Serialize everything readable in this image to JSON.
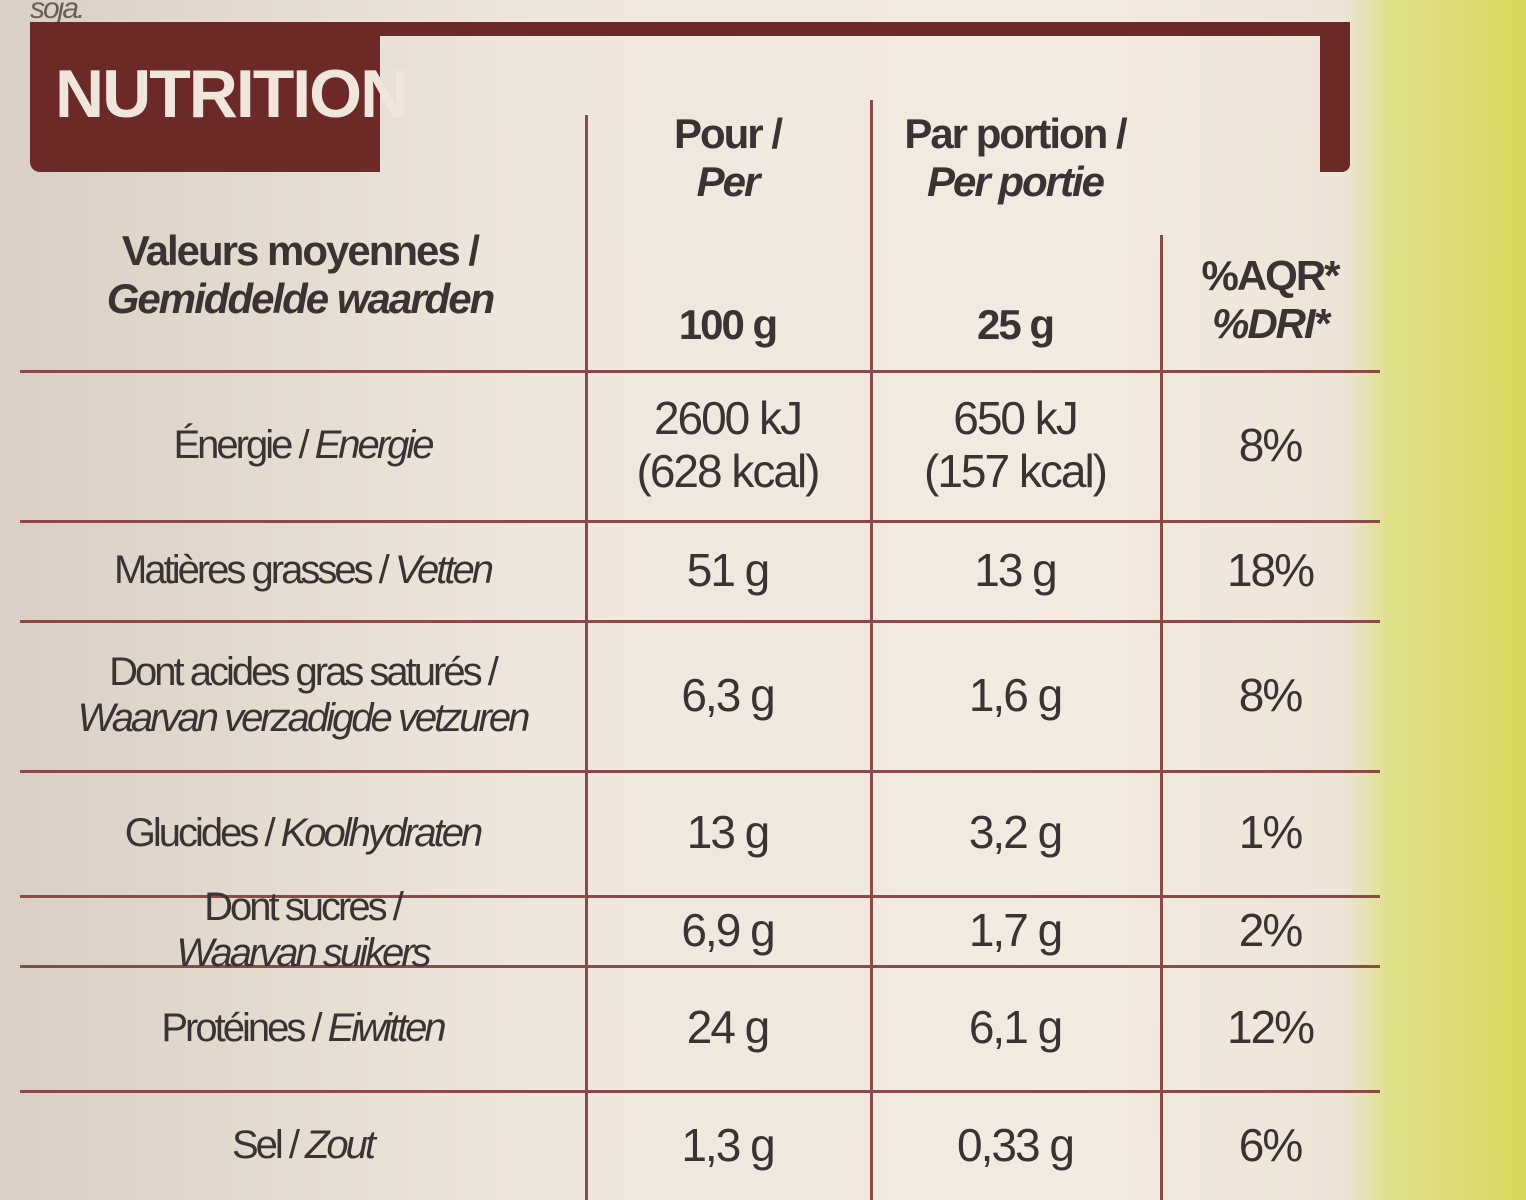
{
  "top_text": "soja.",
  "header": {
    "title": "NUTRITION"
  },
  "table": {
    "columns": [
      {
        "lines": [
          "Valeurs moyennes /",
          "Gemiddelde waarden"
        ]
      },
      {
        "lines": [
          "Pour /",
          "Per"
        ],
        "unit": "100 g"
      },
      {
        "lines": [
          "Par portion /",
          "Per portie"
        ],
        "unit": "25 g"
      },
      {
        "lines": [
          "%AQR*",
          "%DRI*"
        ]
      }
    ],
    "rows": [
      {
        "fr": "Énergie /",
        "nl": "Energie",
        "per100": [
          "2600 kJ",
          "(628 kcal)"
        ],
        "portion": [
          "650 kJ",
          "(157 kcal)"
        ],
        "dri": "8%"
      },
      {
        "fr": "Matières grasses /",
        "nl": "Vetten",
        "per100": [
          "51 g"
        ],
        "portion": [
          "13 g"
        ],
        "dri": "18%"
      },
      {
        "fr": "Dont acides gras saturés /",
        "nl": "Waarvan verzadigde vetzuren",
        "per100": [
          "6,3 g"
        ],
        "portion": [
          "1,6 g"
        ],
        "dri": "8%"
      },
      {
        "fr": "Glucides /",
        "nl": "Koolhydraten",
        "per100": [
          "13 g"
        ],
        "portion": [
          "3,2 g"
        ],
        "dri": "1%"
      },
      {
        "fr": "Dont sucres /",
        "nl": "Waarvan suikers",
        "per100": [
          "6,9 g"
        ],
        "portion": [
          "1,7 g"
        ],
        "dri": "2%"
      },
      {
        "fr": "Protéines /",
        "nl": "Eiwitten",
        "per100": [
          "24 g"
        ],
        "portion": [
          "6,1 g"
        ],
        "dri": "12%"
      },
      {
        "fr": "Sel /",
        "nl": "Zout",
        "per100": [
          "1,3 g"
        ],
        "portion": [
          "0,33 g"
        ],
        "dri": "6%"
      }
    ]
  }
}
